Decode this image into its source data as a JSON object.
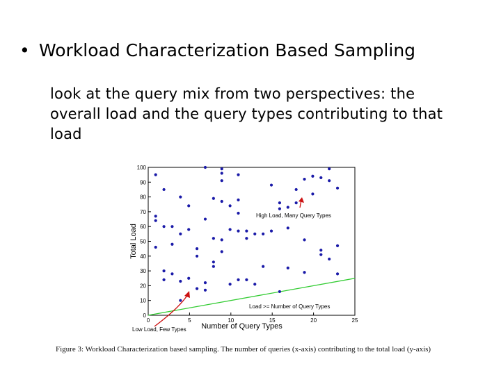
{
  "slide": {
    "bullet": "Workload Characterization Based Sampling",
    "sub_text": "look at the query mix from two perspectives: the overall load and the query types contributing to that load"
  },
  "figure": {
    "caption": "Figure 3: Workload Characterization based sampling. The number of queries (x-axis) contributing to the total load (y-axis)",
    "annotations": {
      "high": "High Load, Many Query Types",
      "low": "Low Load, Few Types",
      "line": "Load >= Number of Query Types"
    },
    "colors": {
      "points": "#1a1aa8",
      "line": "#33cc33",
      "arrow": "#cc1111"
    }
  },
  "chart_data": {
    "type": "scatter",
    "title": "",
    "xlabel": "Number of Query Types",
    "ylabel": "Total Load",
    "xlim": [
      0,
      25
    ],
    "ylim": [
      0,
      100
    ],
    "xticks": [
      0,
      5,
      10,
      15,
      20,
      25
    ],
    "yticks": [
      0,
      10,
      20,
      30,
      40,
      50,
      60,
      70,
      80,
      90,
      100
    ],
    "grid": false,
    "series": [
      {
        "points": [
          [
            0.9,
            95
          ],
          [
            0.9,
            67
          ],
          [
            0.9,
            64
          ],
          [
            0.9,
            46
          ],
          [
            1.9,
            85
          ],
          [
            1.9,
            60
          ],
          [
            1.9,
            30
          ],
          [
            1.9,
            24
          ],
          [
            2.9,
            60
          ],
          [
            2.9,
            48
          ],
          [
            2.9,
            28
          ],
          [
            3.9,
            80
          ],
          [
            3.9,
            55
          ],
          [
            3.9,
            23
          ],
          [
            3.9,
            10
          ],
          [
            4.9,
            74
          ],
          [
            4.9,
            58
          ],
          [
            4.9,
            25
          ],
          [
            5.9,
            45
          ],
          [
            5.9,
            40
          ],
          [
            5.9,
            18
          ],
          [
            6.9,
            100
          ],
          [
            6.9,
            65
          ],
          [
            6.9,
            22
          ],
          [
            6.9,
            17
          ],
          [
            7.9,
            79
          ],
          [
            7.9,
            52
          ],
          [
            7.9,
            36
          ],
          [
            7.9,
            33
          ],
          [
            8.9,
            99
          ],
          [
            8.9,
            96
          ],
          [
            8.9,
            91
          ],
          [
            8.9,
            77
          ],
          [
            8.9,
            51
          ],
          [
            8.9,
            43
          ],
          [
            9.9,
            74
          ],
          [
            9.9,
            58
          ],
          [
            9.9,
            21
          ],
          [
            10.9,
            95
          ],
          [
            10.9,
            78
          ],
          [
            10.9,
            69
          ],
          [
            10.9,
            57
          ],
          [
            10.9,
            24
          ],
          [
            11.9,
            57
          ],
          [
            11.9,
            52
          ],
          [
            11.9,
            24
          ],
          [
            12.9,
            55
          ],
          [
            12.9,
            21
          ],
          [
            13.9,
            55
          ],
          [
            13.9,
            33
          ],
          [
            14.9,
            57
          ],
          [
            14.9,
            88
          ],
          [
            15.9,
            76
          ],
          [
            15.9,
            72
          ],
          [
            15.9,
            16
          ],
          [
            16.9,
            73
          ],
          [
            16.9,
            59
          ],
          [
            16.9,
            32
          ],
          [
            17.9,
            85
          ],
          [
            17.9,
            76
          ],
          [
            18.9,
            92
          ],
          [
            18.9,
            51
          ],
          [
            18.9,
            29
          ],
          [
            19.9,
            94
          ],
          [
            19.9,
            82
          ],
          [
            20.9,
            93
          ],
          [
            20.9,
            44
          ],
          [
            20.9,
            41
          ],
          [
            21.9,
            99
          ],
          [
            21.9,
            91
          ],
          [
            21.9,
            38
          ],
          [
            22.9,
            86
          ],
          [
            22.9,
            47
          ],
          [
            22.9,
            28
          ]
        ]
      }
    ],
    "reference_line": {
      "from": [
        0,
        0
      ],
      "to": [
        25,
        25
      ]
    }
  }
}
